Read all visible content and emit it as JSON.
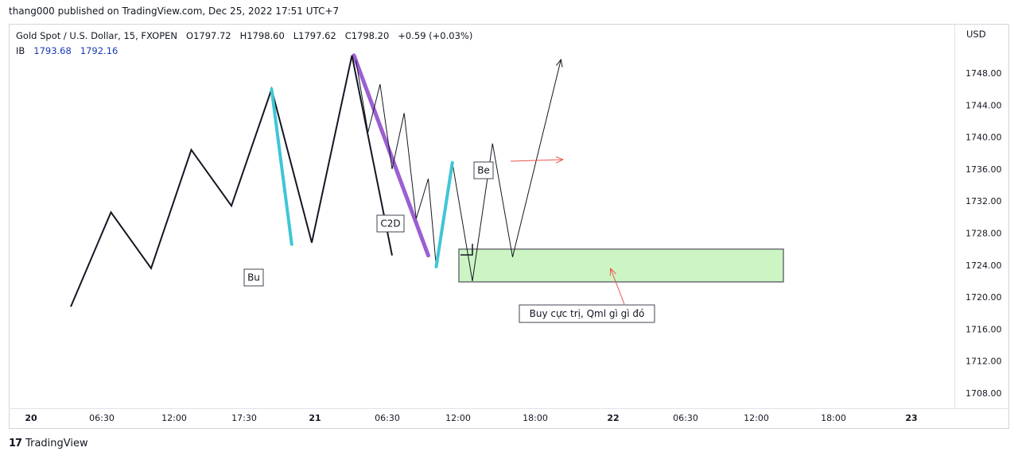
{
  "publish_text": "thang000 published on TradingView.com, Dec 25, 2022 17:51 UTC+7",
  "legend": {
    "symbol": "Gold Spot / U.S. Dollar, 15, FXOPEN",
    "open": "O1797.72",
    "high": "H1798.60",
    "low": "L1797.62",
    "close": "C1798.20",
    "change": "+0.59 (+0.03%)",
    "ib_label": "IB",
    "ib_val1": "1793.68",
    "ib_val2": "1792.16"
  },
  "currency": "USD",
  "footer": {
    "logo_glyph": "17",
    "brand": "TradingView"
  },
  "colors": {
    "cyan": "#3ec6d6",
    "purple": "#9c5fd1",
    "zone_fill": "#cdf5c4",
    "zone_stroke": "#6b6e75",
    "arrow_red": "#e8554e"
  },
  "chart_data": {
    "type": "line",
    "y_ticks": [
      "1748.00",
      "1744.00",
      "1740.00",
      "1736.00",
      "1732.00",
      "1728.00",
      "1724.00",
      "1720.00",
      "1716.00",
      "1712.00",
      "1708.00"
    ],
    "x_ticks": [
      {
        "label": "20",
        "bold": true
      },
      {
        "label": "06:30",
        "bold": false
      },
      {
        "label": "12:00",
        "bold": false
      },
      {
        "label": "17:30",
        "bold": false
      },
      {
        "label": "21",
        "bold": true
      },
      {
        "label": "06:30",
        "bold": false
      },
      {
        "label": "12:00",
        "bold": false
      },
      {
        "label": "18:00",
        "bold": false
      },
      {
        "label": "22",
        "bold": true
      },
      {
        "label": "06:30",
        "bold": false
      },
      {
        "label": "12:00",
        "bold": false
      },
      {
        "label": "18:00",
        "bold": false
      },
      {
        "label": "23",
        "bold": true
      }
    ],
    "ylim": [
      1706,
      1752
    ],
    "main_path": [
      [
        0,
        1718.8
      ],
      [
        1,
        1730.6
      ],
      [
        2,
        1723.6
      ],
      [
        3,
        1738.4
      ],
      [
        4,
        1731.4
      ],
      [
        5,
        1746.0
      ],
      [
        6,
        1726.8
      ],
      [
        7,
        1750.2
      ],
      [
        8,
        1725.2
      ]
    ],
    "thin_path": [
      [
        7.1,
        1749.6
      ],
      [
        7.4,
        1740.6
      ],
      [
        7.7,
        1746.6
      ],
      [
        8.0,
        1736.0
      ],
      [
        8.3,
        1743.0
      ],
      [
        8.6,
        1729.8
      ],
      [
        8.9,
        1734.8
      ],
      [
        9.1,
        1723.8
      ],
      [
        9.5,
        1736.8
      ],
      [
        10.0,
        1722.0
      ],
      [
        10.5,
        1739.2
      ],
      [
        11.0,
        1725.0
      ],
      [
        12.2,
        1749.6
      ]
    ],
    "cyan_segments": [
      [
        [
          5.0,
          1746.0
        ],
        [
          5.5,
          1726.6
        ]
      ],
      [
        [
          9.1,
          1723.8
        ],
        [
          9.5,
          1736.8
        ]
      ]
    ],
    "purple_segment": [
      [
        7.05,
        1750.2
      ],
      [
        8.9,
        1725.2
      ]
    ],
    "zone": {
      "y_top": 1726.0,
      "y_bottom": 1721.9
    },
    "labels": [
      "Bu",
      "C2D",
      "Be",
      "Buy cực trị, Qml gì gì đó"
    ]
  }
}
